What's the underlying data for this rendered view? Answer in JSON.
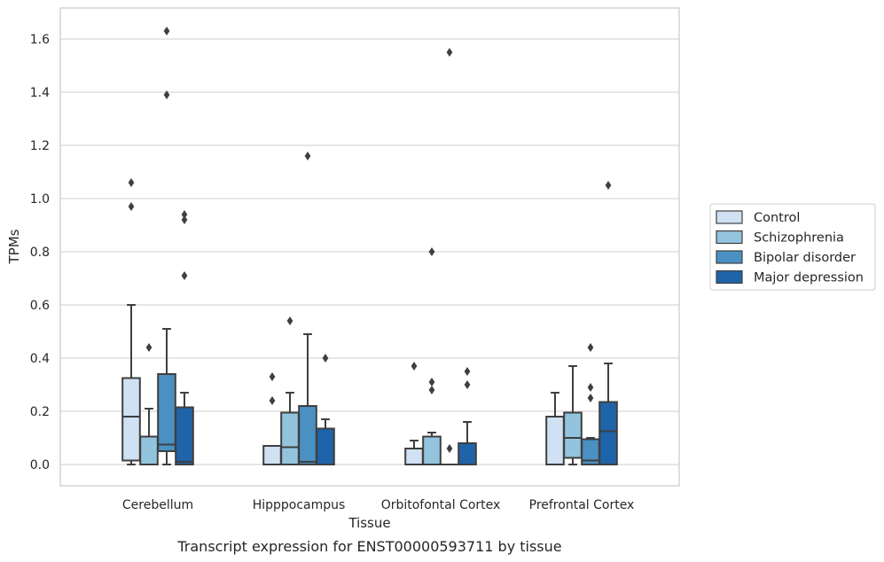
{
  "caption": "Transcript expression for ENST00000593711 by tissue",
  "chart_data": {
    "type": "box",
    "xlabel": "Tissue",
    "ylabel": "TPMs",
    "ylim": [
      -0.08,
      1.72
    ],
    "yticks": [
      "0.0",
      "0.2",
      "0.4",
      "0.6",
      "0.8",
      "1.0",
      "1.2",
      "1.4",
      "1.6"
    ],
    "grid": "horizontal",
    "legend_position": "right",
    "categories": [
      "Cerebellum",
      "Hipppocampus",
      "Orbitofontal Cortex",
      "Prefrontal Cortex"
    ],
    "series": [
      {
        "name": "Control",
        "color": "#cfe1f2",
        "boxes": [
          {
            "low": 0.0,
            "q1": 0.015,
            "median": 0.18,
            "q3": 0.325,
            "high": 0.6,
            "outliers": [
              0.97,
              1.06
            ]
          },
          {
            "low": 0.0,
            "q1": 0.0,
            "median": 0.0,
            "q3": 0.07,
            "high": 0.07,
            "outliers": [
              0.24,
              0.33
            ]
          },
          {
            "low": 0.0,
            "q1": 0.0,
            "median": 0.0,
            "q3": 0.06,
            "high": 0.09,
            "outliers": [
              0.37
            ]
          },
          {
            "low": 0.0,
            "q1": 0.0,
            "median": 0.0,
            "q3": 0.18,
            "high": 0.27,
            "outliers": []
          }
        ]
      },
      {
        "name": "Schizophrenia",
        "color": "#93c4de",
        "boxes": [
          {
            "low": 0.0,
            "q1": 0.0,
            "median": 0.0,
            "q3": 0.105,
            "high": 0.21,
            "outliers": [
              0.44
            ]
          },
          {
            "low": 0.0,
            "q1": 0.0,
            "median": 0.065,
            "q3": 0.195,
            "high": 0.27,
            "outliers": [
              0.54
            ]
          },
          {
            "low": 0.0,
            "q1": 0.0,
            "median": 0.0,
            "q3": 0.105,
            "high": 0.12,
            "outliers": [
              0.28,
              0.31,
              0.8
            ]
          },
          {
            "low": 0.0,
            "q1": 0.025,
            "median": 0.1,
            "q3": 0.195,
            "high": 0.37,
            "outliers": []
          }
        ]
      },
      {
        "name": "Bipolar disorder",
        "color": "#4a90c2",
        "boxes": [
          {
            "low": 0.0,
            "q1": 0.05,
            "median": 0.075,
            "q3": 0.34,
            "high": 0.51,
            "outliers": [
              1.39,
              1.63
            ]
          },
          {
            "low": 0.0,
            "q1": 0.0,
            "median": 0.01,
            "q3": 0.22,
            "high": 0.49,
            "outliers": [
              1.16
            ]
          },
          {
            "low": 0.0,
            "q1": 0.0,
            "median": 0.0,
            "q3": 0.0,
            "high": 0.0,
            "outliers": [
              0.06,
              1.55
            ]
          },
          {
            "low": 0.0,
            "q1": 0.0,
            "median": 0.015,
            "q3": 0.095,
            "high": 0.1,
            "outliers": [
              0.25,
              0.29,
              0.44
            ]
          }
        ]
      },
      {
        "name": "Major depression",
        "color": "#1f63a8",
        "boxes": [
          {
            "low": 0.0,
            "q1": 0.0,
            "median": 0.01,
            "q3": 0.215,
            "high": 0.27,
            "outliers": [
              0.71,
              0.92,
              0.94
            ]
          },
          {
            "low": 0.0,
            "q1": 0.0,
            "median": 0.0,
            "q3": 0.135,
            "high": 0.17,
            "outliers": [
              0.4
            ]
          },
          {
            "low": 0.0,
            "q1": 0.0,
            "median": 0.0,
            "q3": 0.08,
            "high": 0.16,
            "outliers": [
              0.3,
              0.35
            ]
          },
          {
            "low": 0.0,
            "q1": 0.0,
            "median": 0.125,
            "q3": 0.235,
            "high": 0.38,
            "outliers": [
              1.05
            ]
          }
        ]
      }
    ]
  }
}
